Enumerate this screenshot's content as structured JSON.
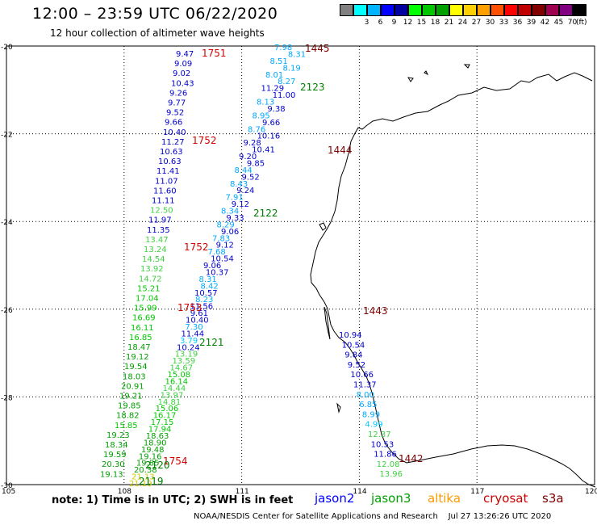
{
  "header": {
    "title": "12:00 – 23:59 UTC 06/22/2020",
    "subtitle": "12 hour collection of altimeter wave heights"
  },
  "legend": {
    "colors": [
      "#808080",
      "#00ffff",
      "#00b4ff",
      "#0000ff",
      "#0000a0",
      "#00ff00",
      "#00c800",
      "#00a000",
      "#ffff00",
      "#ffd000",
      "#ffa000",
      "#ff5000",
      "#ff0000",
      "#c00000",
      "#800000",
      "#a00050",
      "#800080",
      "#000000"
    ],
    "labels": [
      "",
      "3",
      "6",
      "9",
      "12",
      "15",
      "18",
      "21",
      "24",
      "27",
      "30",
      "33",
      "36",
      "39",
      "42",
      "45",
      "70"
    ],
    "unit": "(ft)"
  },
  "axes": {
    "lat_labels": [
      "-20",
      "-22",
      "-24",
      "-26",
      "-28",
      "-30"
    ],
    "lon_labels": [
      "105",
      "108",
      "111",
      "114",
      "117",
      "120"
    ]
  },
  "passes": [
    {
      "label": "1751",
      "color": "#cc0000"
    },
    {
      "label": "1752",
      "color": "#cc0000"
    },
    {
      "label": "1752",
      "color": "#cc0000"
    },
    {
      "label": "1753",
      "color": "#cc0000"
    },
    {
      "label": "1754",
      "color": "#cc0000"
    },
    {
      "label": "1445",
      "color": "#800000"
    },
    {
      "label": "1444",
      "color": "#800000"
    },
    {
      "label": "1443",
      "color": "#800000"
    },
    {
      "label": "1442",
      "color": "#800000"
    },
    {
      "label": "2123",
      "color": "#008000"
    },
    {
      "label": "2122",
      "color": "#008000"
    },
    {
      "label": "2121",
      "color": "#008000"
    },
    {
      "label": "2120",
      "color": "#008000"
    },
    {
      "label": "2119",
      "color": "#008000"
    }
  ],
  "tracks": {
    "track_1751": [
      "9.47",
      "9.09",
      "9.02",
      "10.43",
      "9.26",
      "9.77",
      "9.52",
      "9.66",
      "10.40",
      "11.27",
      "10.63",
      "10.63",
      "11.41",
      "11.07",
      "11.60",
      "11.11",
      "12.50",
      "11.97",
      "11.35",
      "13.47",
      "13.24",
      "14.54",
      "13.92",
      "14.72",
      "15.21",
      "17.04",
      "15.99",
      "16.69",
      "16.11",
      "16.85",
      "18.47",
      "19.12",
      "19.54",
      "18.03",
      "20.91",
      "19.21",
      "19.85",
      "18.82",
      "15.85",
      "19.23",
      "18.34",
      "19.59",
      "20.30",
      "19.13"
    ],
    "track_2123": [
      "7.98",
      "8.31",
      "8.51",
      "8.19",
      "8.01",
      "8.27",
      "11.29",
      "11.00",
      "8.13",
      "9.38",
      "8.95",
      "9.66",
      "8.76",
      "10.16",
      "9.28",
      "10.41",
      "9.20",
      "9.85",
      "8.44",
      "9.52",
      "8.43",
      "9.24",
      "7.91",
      "9.12",
      "8.34",
      "9.33",
      "8.29",
      "9.06",
      "7.83",
      "9.12",
      "7.68",
      "10.54",
      "9.06",
      "10.37",
      "8.31",
      "8.42",
      "10.57",
      "8.23",
      "11.56",
      "9.61",
      "10.40",
      "7.30",
      "11.44",
      "3.79",
      "10.24",
      "13.19",
      "13.59",
      "14.67",
      "15.08",
      "16.14",
      "14.44",
      "13.97",
      "14.81",
      "15.06",
      "16.17",
      "17.15",
      "17.94",
      "18.63",
      "18.90",
      "19.48",
      "19.16",
      "19.85",
      "20.38",
      "21.13",
      "21.19"
    ],
    "track_1444": [
      "10.94",
      "10.54",
      "9.84",
      "9.52",
      "10.66",
      "11.37",
      "8.00",
      "6.85",
      "8.99",
      "4.99",
      "12.37",
      "10.53",
      "11.86",
      "12.08",
      "13.96"
    ]
  }
}
